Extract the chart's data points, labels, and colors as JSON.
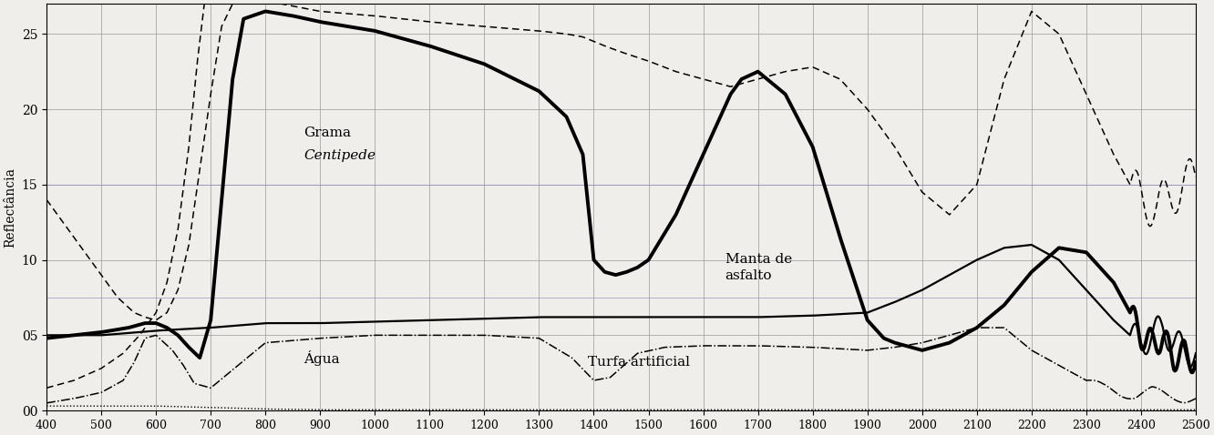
{
  "title": "",
  "ylabel": "Reflectância",
  "xlim": [
    400,
    2500
  ],
  "ylim": [
    0,
    27
  ],
  "yticks": [
    0,
    5,
    10,
    15,
    20,
    25
  ],
  "ytick_labels": [
    "00",
    "05",
    "10",
    "15",
    "20",
    "25"
  ],
  "xticks": [
    400,
    500,
    600,
    700,
    800,
    900,
    1000,
    1100,
    1200,
    1300,
    1400,
    1500,
    1600,
    1700,
    1800,
    1900,
    2000,
    2100,
    2200,
    2300,
    2400,
    2500
  ],
  "bg_color": "#f0eeea",
  "grid_color": "#999999",
  "ann_grama_x": 870,
  "ann_grama_y": 18.0,
  "ann_agua_x": 870,
  "ann_agua_y": 3.5,
  "ann_manta_x": 1640,
  "ann_manta_y": 9.5,
  "ann_turfa_x": 1390,
  "ann_turfa_y": 3.2,
  "lw_thick": 2.8,
  "lw_med": 1.6,
  "lw_thin": 1.1
}
